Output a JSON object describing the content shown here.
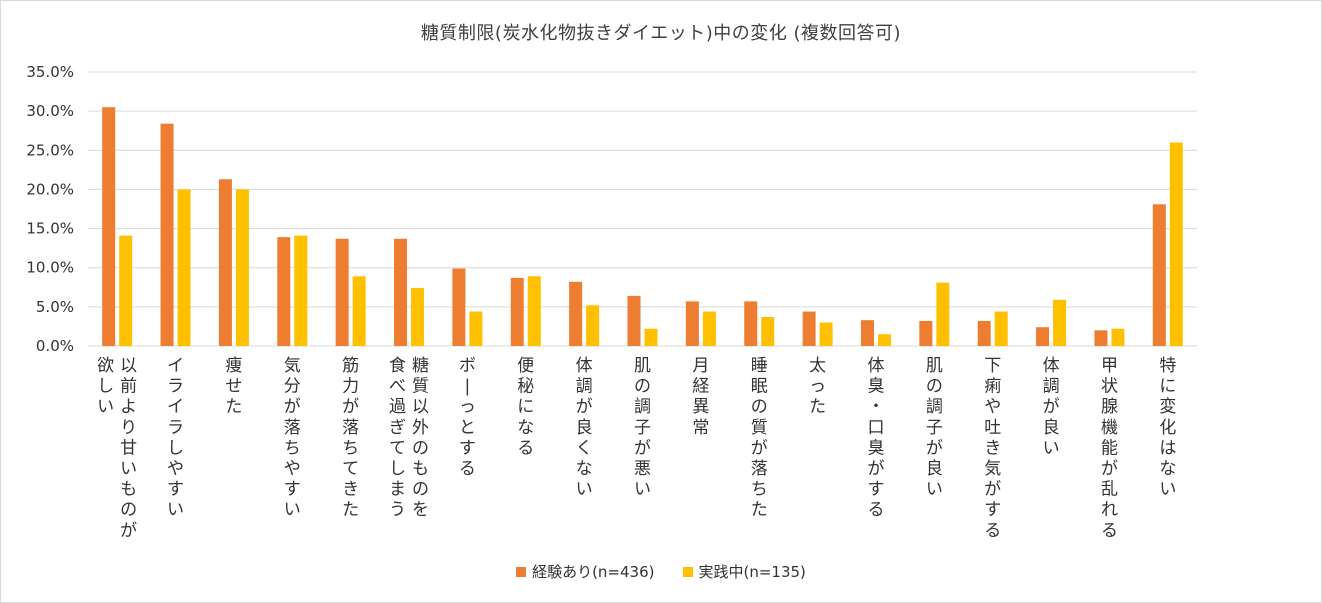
{
  "colors": {
    "series1": "#ED7D31",
    "series2": "#FFC000",
    "grid": "#D9D9D9",
    "text": "#333333"
  },
  "chart_data": {
    "type": "bar",
    "title": "糖質制限(炭水化物抜きダイエット)中の変化 (複数回答可)",
    "xlabel": "",
    "ylabel": "",
    "ylim": [
      0,
      35
    ],
    "grid": true,
    "legend_position": "bottom",
    "yticks": [
      "0.0%",
      "5.0%",
      "10.0%",
      "15.0%",
      "20.0%",
      "25.0%",
      "30.0%",
      "35.0%"
    ],
    "categories": [
      "以前より甘いものが欲しい",
      "イライラしやすい",
      "痩せた",
      "気分が落ちやすい",
      "筋力が落ちてきた",
      "糖質以外のものを食べ過ぎてしまう",
      "ボーっとする",
      "便秘になる",
      "体調が良くない",
      "肌の調子が悪い",
      "月経異常",
      "睡眠の質が落ちた",
      "太った",
      "体臭・口臭がする",
      "肌の調子が良い",
      "下痢や吐き気がする",
      "体調が良い",
      "甲状腺機能が乱れる",
      "特に変化はない"
    ],
    "category_lines": [
      [
        "以前より甘いものが",
        "欲しい"
      ],
      [
        "イライラしやすい"
      ],
      [
        "痩せた"
      ],
      [
        "気分が落ちやすい"
      ],
      [
        "筋力が落ちてきた"
      ],
      [
        "糖質以外のものを",
        "食べ過ぎてしまう"
      ],
      [
        "ボーっとする"
      ],
      [
        "便秘になる"
      ],
      [
        "体調が良くない"
      ],
      [
        "肌の調子が悪い"
      ],
      [
        "月経異常"
      ],
      [
        "睡眠の質が落ちた"
      ],
      [
        "太った"
      ],
      [
        "体臭・口臭がする"
      ],
      [
        "肌の調子が良い"
      ],
      [
        "下痢や吐き気がする"
      ],
      [
        "体調が良い"
      ],
      [
        "甲状腺機能が乱れる"
      ],
      [
        "特に変化はない"
      ]
    ],
    "series": [
      {
        "name": "経験あり(n=436)",
        "values": [
          30.5,
          28.4,
          21.3,
          13.9,
          13.7,
          13.7,
          9.9,
          8.7,
          8.2,
          6.4,
          5.7,
          5.7,
          4.4,
          3.3,
          3.2,
          3.2,
          2.4,
          2.0,
          18.1
        ]
      },
      {
        "name": "実践中(n=135)",
        "values": [
          14.1,
          20.0,
          20.0,
          14.1,
          8.9,
          7.4,
          4.4,
          8.9,
          5.2,
          2.2,
          4.4,
          3.7,
          3.0,
          1.5,
          8.1,
          4.4,
          5.9,
          2.2,
          26.0
        ]
      }
    ]
  }
}
